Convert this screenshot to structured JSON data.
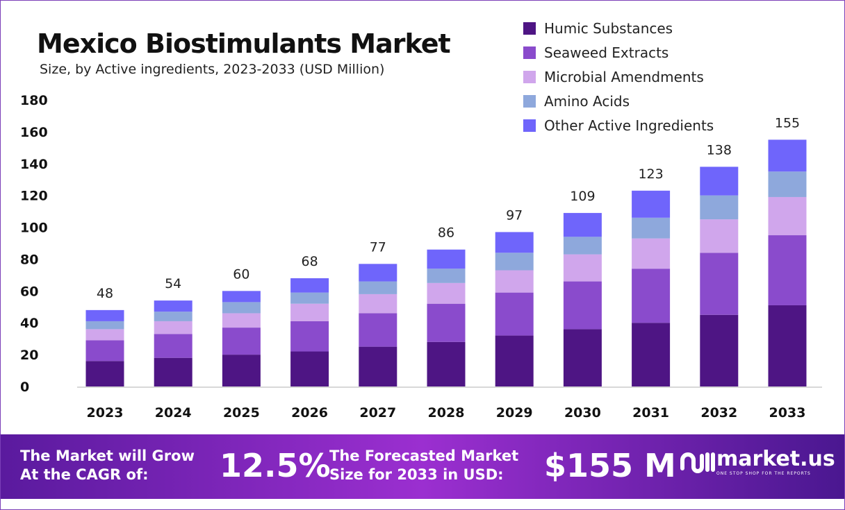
{
  "chart_data": {
    "type": "bar",
    "stacked": true,
    "title": "Mexico Biostimulants Market",
    "subtitle": "Size, by Active ingredients, 2023-2033 (USD Million)",
    "categories": [
      "2023",
      "2024",
      "2025",
      "2026",
      "2027",
      "2028",
      "2029",
      "2030",
      "2031",
      "2032",
      "2033"
    ],
    "totals": [
      48,
      54,
      60,
      68,
      77,
      86,
      97,
      109,
      123,
      138,
      155
    ],
    "ylim": [
      0,
      180
    ],
    "yticks": [
      0,
      20,
      40,
      60,
      80,
      100,
      120,
      140,
      160,
      180
    ],
    "grid": false,
    "legend_position": "top-right",
    "series": [
      {
        "name": "Humic Substances",
        "color": "#4e1584",
        "values": [
          16,
          18,
          20,
          22,
          25,
          28,
          32,
          36,
          40,
          45,
          51
        ]
      },
      {
        "name": "Seaweed Extracts",
        "color": "#8a4bcc",
        "values": [
          13,
          15,
          17,
          19,
          21,
          24,
          27,
          30,
          34,
          39,
          44
        ]
      },
      {
        "name": "Microbial Amendments",
        "color": "#d0a6ec",
        "values": [
          7,
          8,
          9,
          11,
          12,
          13,
          14,
          17,
          19,
          21,
          24
        ]
      },
      {
        "name": "Amino Acids",
        "color": "#8ea8dc",
        "values": [
          5,
          6,
          7,
          7,
          8,
          9,
          11,
          11,
          13,
          15,
          16
        ]
      },
      {
        "name": "Other Active Ingredients",
        "color": "#6f65fb",
        "values": [
          7,
          7,
          7,
          9,
          11,
          12,
          13,
          15,
          17,
          18,
          20
        ]
      }
    ]
  },
  "banner": {
    "cagr_text_1": "The Market will Grow",
    "cagr_text_2": "At the CAGR of:",
    "cagr": "12.5%",
    "forecast_text_1": "The Forecasted Market",
    "forecast_text_2": "Size for 2033 in USD:",
    "forecast": "$155 M",
    "brand": "market.us",
    "tagline": "ONE STOP SHOP FOR THE REPORTS"
  }
}
